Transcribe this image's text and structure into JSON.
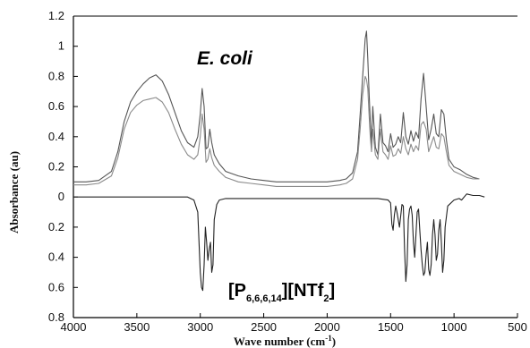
{
  "chart_data": {
    "type": "line",
    "xlabel_main": "Wave number (cm",
    "xlabel_sup": "-1",
    "xlabel_close": ")",
    "ylabel": "Absorbance (au)",
    "xlim": [
      4000,
      500
    ],
    "ylim_display": [
      -0.8,
      1.2
    ],
    "x_ticks": [
      4000,
      3500,
      3000,
      2500,
      2000,
      1500,
      1000,
      500
    ],
    "x_tick_labels": [
      "4000",
      "3500",
      "3000",
      "2500",
      "2000",
      "1500",
      "1000",
      "500"
    ],
    "y_ticks": [
      1.2,
      1.0,
      0.8,
      0.6,
      0.4,
      0.2,
      0.0,
      -0.2,
      -0.4,
      -0.6,
      -0.8
    ],
    "y_tick_labels": [
      "1.2",
      "1",
      "0.8",
      "0.6",
      "0.4",
      "0.2",
      "0",
      "0.2",
      "0.4",
      "0.6",
      "0.8"
    ],
    "annotation_top": "E. coli",
    "annotation_bottom": {
      "p1": "[P",
      "sub": "6,6,6,14",
      "p2": "][NTf",
      "sub2": "2",
      "p3": "]"
    },
    "colors": {
      "upper_1": "#555555",
      "upper_2": "#8a8a8a",
      "lower": "#222222",
      "axis": "#000000"
    },
    "series": [
      {
        "x": [
          4000,
          3900,
          3800,
          3700,
          3650,
          3600,
          3550,
          3500,
          3450,
          3400,
          3350,
          3300,
          3250,
          3200,
          3150,
          3100,
          3050,
          3020,
          3000,
          2985,
          2970,
          2955,
          2940,
          2925,
          2910,
          2890,
          2870,
          2850,
          2800,
          2700,
          2600,
          2500,
          2400,
          2300,
          2200,
          2100,
          2000,
          1900,
          1850,
          1800,
          1760,
          1740,
          1720,
          1700,
          1690,
          1680,
          1670,
          1660,
          1650,
          1640,
          1620,
          1600,
          1580,
          1560,
          1540,
          1520,
          1500,
          1480,
          1460,
          1440,
          1420,
          1400,
          1380,
          1360,
          1340,
          1320,
          1300,
          1280,
          1260,
          1240,
          1220,
          1200,
          1180,
          1160,
          1140,
          1120,
          1100,
          1080,
          1060,
          1040,
          1000,
          950,
          900,
          850,
          800
        ],
        "values": [
          0.1,
          0.1,
          0.11,
          0.17,
          0.3,
          0.5,
          0.63,
          0.7,
          0.75,
          0.79,
          0.81,
          0.77,
          0.68,
          0.56,
          0.44,
          0.36,
          0.33,
          0.4,
          0.55,
          0.72,
          0.6,
          0.32,
          0.33,
          0.45,
          0.36,
          0.28,
          0.25,
          0.22,
          0.17,
          0.14,
          0.12,
          0.11,
          0.1,
          0.1,
          0.1,
          0.1,
          0.1,
          0.11,
          0.12,
          0.16,
          0.3,
          0.55,
          0.8,
          1.05,
          1.1,
          0.92,
          0.7,
          0.5,
          0.35,
          0.6,
          0.33,
          0.28,
          0.55,
          0.36,
          0.34,
          0.3,
          0.42,
          0.33,
          0.35,
          0.4,
          0.36,
          0.56,
          0.4,
          0.35,
          0.44,
          0.37,
          0.43,
          0.39,
          0.65,
          0.82,
          0.6,
          0.38,
          0.45,
          0.55,
          0.42,
          0.4,
          0.58,
          0.55,
          0.38,
          0.25,
          0.2,
          0.18,
          0.15,
          0.13,
          0.12
        ]
      },
      {
        "x": [
          4000,
          3900,
          3800,
          3700,
          3650,
          3600,
          3550,
          3500,
          3450,
          3400,
          3350,
          3300,
          3250,
          3200,
          3150,
          3100,
          3050,
          3020,
          3000,
          2985,
          2970,
          2955,
          2940,
          2925,
          2910,
          2890,
          2870,
          2850,
          2800,
          2700,
          2600,
          2500,
          2400,
          2300,
          2200,
          2100,
          2000,
          1900,
          1850,
          1800,
          1760,
          1740,
          1720,
          1700,
          1690,
          1680,
          1670,
          1660,
          1650,
          1640,
          1620,
          1600,
          1580,
          1560,
          1540,
          1520,
          1500,
          1480,
          1460,
          1440,
          1420,
          1400,
          1380,
          1360,
          1340,
          1320,
          1300,
          1280,
          1260,
          1240,
          1220,
          1200,
          1180,
          1160,
          1140,
          1120,
          1100,
          1080,
          1060,
          1040,
          1000,
          950,
          900,
          850,
          800
        ],
        "values": [
          0.08,
          0.08,
          0.09,
          0.14,
          0.26,
          0.45,
          0.56,
          0.61,
          0.64,
          0.65,
          0.66,
          0.63,
          0.56,
          0.45,
          0.35,
          0.28,
          0.25,
          0.28,
          0.4,
          0.55,
          0.45,
          0.23,
          0.25,
          0.32,
          0.26,
          0.21,
          0.19,
          0.17,
          0.13,
          0.1,
          0.09,
          0.08,
          0.07,
          0.07,
          0.07,
          0.07,
          0.07,
          0.08,
          0.09,
          0.12,
          0.25,
          0.45,
          0.68,
          0.8,
          0.78,
          0.72,
          0.55,
          0.4,
          0.3,
          0.45,
          0.28,
          0.25,
          0.45,
          0.3,
          0.28,
          0.25,
          0.34,
          0.27,
          0.28,
          0.32,
          0.29,
          0.4,
          0.32,
          0.28,
          0.35,
          0.3,
          0.34,
          0.31,
          0.48,
          0.5,
          0.45,
          0.3,
          0.35,
          0.4,
          0.33,
          0.32,
          0.42,
          0.4,
          0.3,
          0.21,
          0.17,
          0.15,
          0.13,
          0.12,
          0.12
        ]
      },
      {
        "x": [
          4000,
          3500,
          3100,
          3050,
          3020,
          3000,
          2990,
          2980,
          2970,
          2960,
          2950,
          2940,
          2930,
          2920,
          2910,
          2900,
          2890,
          2870,
          2850,
          2800,
          2600,
          2400,
          2200,
          2000,
          1800,
          1700,
          1600,
          1520,
          1500,
          1490,
          1480,
          1470,
          1460,
          1450,
          1430,
          1410,
          1400,
          1390,
          1380,
          1370,
          1360,
          1350,
          1340,
          1330,
          1320,
          1310,
          1300,
          1290,
          1280,
          1270,
          1260,
          1250,
          1240,
          1230,
          1220,
          1210,
          1200,
          1190,
          1180,
          1170,
          1160,
          1150,
          1140,
          1130,
          1120,
          1110,
          1100,
          1090,
          1080,
          1070,
          1050,
          1000,
          960,
          940,
          900,
          850,
          800,
          760
        ],
        "values": [
          0.0,
          0.0,
          0.0,
          -0.02,
          -0.1,
          -0.5,
          -0.6,
          -0.62,
          -0.45,
          -0.2,
          -0.3,
          -0.42,
          -0.35,
          -0.3,
          -0.5,
          -0.45,
          -0.15,
          -0.05,
          -0.02,
          -0.01,
          -0.01,
          -0.01,
          -0.01,
          -0.01,
          -0.01,
          -0.01,
          -0.01,
          -0.02,
          -0.04,
          -0.18,
          -0.22,
          -0.12,
          -0.06,
          -0.1,
          -0.2,
          -0.05,
          -0.06,
          -0.35,
          -0.56,
          -0.45,
          -0.15,
          -0.08,
          -0.06,
          -0.12,
          -0.3,
          -0.4,
          -0.25,
          -0.1,
          -0.08,
          -0.22,
          -0.35,
          -0.45,
          -0.52,
          -0.5,
          -0.38,
          -0.3,
          -0.48,
          -0.52,
          -0.45,
          -0.25,
          -0.15,
          -0.25,
          -0.42,
          -0.38,
          -0.22,
          -0.15,
          -0.3,
          -0.5,
          -0.42,
          -0.2,
          -0.06,
          -0.02,
          -0.01,
          -0.02,
          0.02,
          0.01,
          0.01,
          0.0
        ]
      }
    ]
  }
}
